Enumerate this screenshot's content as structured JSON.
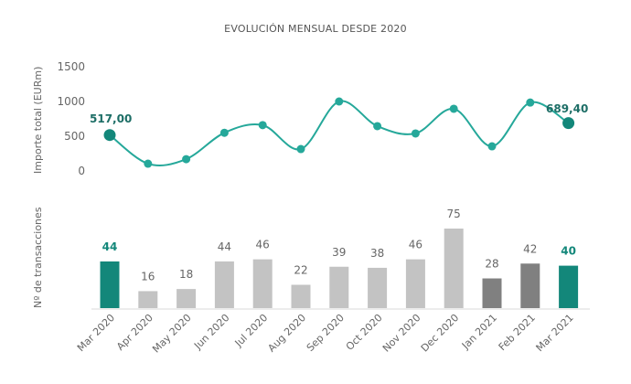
{
  "title": "EVOLUCIÓN MENSUAL DESDE 2020",
  "colors": {
    "line": "#25a89a",
    "highlight_bar": "#13877a",
    "light_bar": "#c3c3c3",
    "dark_bar": "#808080",
    "axis_text": "#666666"
  },
  "chart_data": [
    {
      "type": "line",
      "title": "EVOLUCIÓN MENSUAL DESDE 2020",
      "xlabel": "",
      "ylabel": "Importe total (EURm)",
      "yticks": [
        0,
        500,
        1000,
        1500
      ],
      "ylim": [
        0,
        1500
      ],
      "grid": false,
      "categories": [
        "Mar 2020",
        "Apr 2020",
        "May 2020",
        "Jun 2020",
        "Jul 2020",
        "Aug 2020",
        "Sep 2020",
        "Oct 2020",
        "Nov 2020",
        "Dec 2020",
        "Jan 2021",
        "Feb 2021",
        "Mar 2021"
      ],
      "values": [
        517.0,
        105,
        170,
        550,
        660,
        315,
        1000,
        645,
        540,
        895,
        355,
        985,
        689.4
      ],
      "annotations": [
        {
          "index": 0,
          "label": "517,00"
        },
        {
          "index": 12,
          "label": "689,40"
        }
      ]
    },
    {
      "type": "bar",
      "ylabel": "Nº de transacciones",
      "grid": false,
      "categories": [
        "Mar 2020",
        "Apr 2020",
        "May 2020",
        "Jun 2020",
        "Jul 2020",
        "Aug 2020",
        "Sep 2020",
        "Oct 2020",
        "Nov 2020",
        "Dec 2020",
        "Jan 2021",
        "Feb 2021",
        "Mar 2021"
      ],
      "values": [
        44,
        16,
        18,
        44,
        46,
        22,
        39,
        38,
        46,
        75,
        28,
        42,
        40
      ],
      "bar_styles": [
        "highlight",
        "light",
        "light",
        "light",
        "light",
        "light",
        "light",
        "light",
        "light",
        "light",
        "dark",
        "dark",
        "highlight"
      ]
    }
  ],
  "line_axis": {
    "ylabel": "Importe total (EURm)",
    "ticks": [
      "1500",
      "1000",
      "500",
      "0"
    ]
  },
  "bar_axis": {
    "ylabel": "Nº de transacciones"
  },
  "x_labels": [
    "Mar 2020",
    "Apr 2020",
    "May 2020",
    "Jun 2020",
    "Jul 2020",
    "Aug 2020",
    "Sep 2020",
    "Oct 2020",
    "Nov 2020",
    "Dec 2020",
    "Jan 2021",
    "Feb 2021",
    "Mar 2021"
  ],
  "bar_labels": [
    "44",
    "16",
    "18",
    "44",
    "46",
    "22",
    "39",
    "38",
    "46",
    "75",
    "28",
    "42",
    "40"
  ],
  "point_labels": {
    "first": "517,00",
    "last": "689,40"
  }
}
